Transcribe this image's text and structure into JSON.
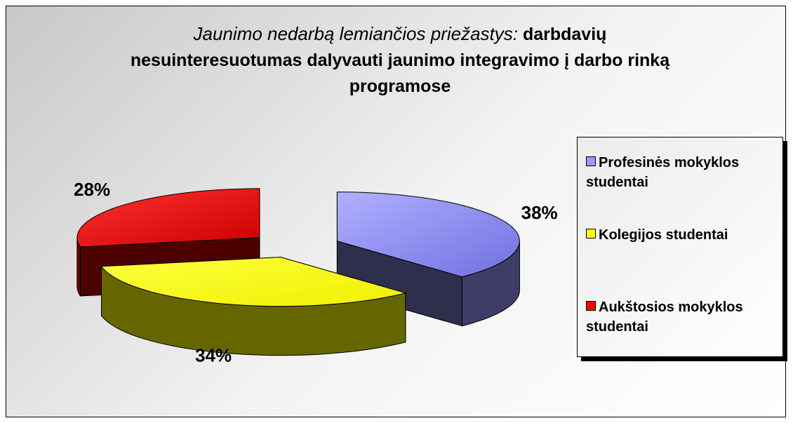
{
  "chart_data": {
    "type": "pie",
    "title": "Jaunimo nedarbą lemiančios priežastys:",
    "subtitle": "darbdavių nesuinteresuotumas dalyvauti jaunimo integravimo į darbo rinką programose",
    "series": [
      {
        "name": "Profesinės mokyklos studentai",
        "color": "#9999ff"
      },
      {
        "name": "Kolegijos studentai",
        "color": "#ffff00"
      },
      {
        "name": "Aukštosios mokyklos studentai",
        "color": "#ff0000"
      }
    ],
    "values": [
      38,
      34,
      28
    ],
    "value_labels": [
      "38%",
      "34%",
      "28%"
    ],
    "legend": "right"
  }
}
